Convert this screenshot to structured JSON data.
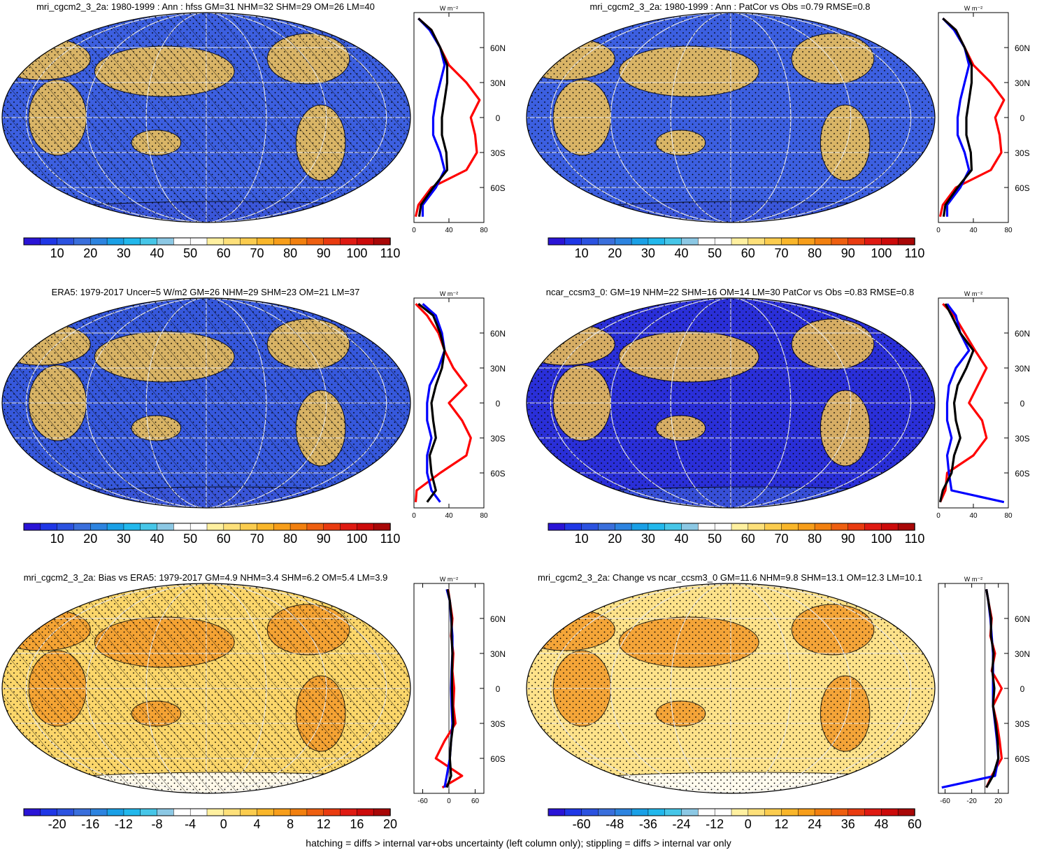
{
  "footnote": "hatching = diffs > internal var+obs uncertainty (left column only); stippling = diffs > internal var only",
  "profile_unit": "W m⁻²",
  "lat_ticks": [
    "60N",
    "30N",
    "0",
    "30S",
    "60S"
  ],
  "colors": {
    "abs_scale": [
      "#2a14d6",
      "#1f37e6",
      "#2b52e0",
      "#3a6fdc",
      "#2d84e0",
      "#1aa0e6",
      "#22b8ec",
      "#46c6e8",
      "#8cc8e4",
      "#ffffff",
      "#ffffff",
      "#fff0a0",
      "#fde07a",
      "#fbcc4e",
      "#f9b62a",
      "#f79e1a",
      "#f2800f",
      "#ee5f10",
      "#e93b10",
      "#df1a12",
      "#cc0a0a",
      "#a80707"
    ],
    "diff_scale": [
      "#2a14d6",
      "#1f37e6",
      "#2b52e0",
      "#3a6fdc",
      "#2d84e0",
      "#1aa0e6",
      "#22b8ec",
      "#46c6e8",
      "#8cc8e4",
      "#ffffff",
      "#ffffff",
      "#fff0a0",
      "#fde07a",
      "#fbcc4e",
      "#f9b62a",
      "#f79e1a",
      "#f2800f",
      "#ee5f10",
      "#e93b10",
      "#df1a12",
      "#cc0a0a",
      "#a80707"
    ],
    "land_line": "#000000",
    "series_land": "#ff0000",
    "series_ocean": "#0000ff",
    "series_global": "#000000"
  },
  "panels": [
    {
      "title": "mri_cgcm2_3_2a: 1980-1999 : Ann : hfss GM=31 NHM=32 SHM=29 OM=26 LM=40",
      "map_fill": "#3c5fe0",
      "hatched": true,
      "scale": "abs",
      "colorbar_labels": [
        "10",
        "20",
        "30",
        "40",
        "50",
        "60",
        "70",
        "80",
        "90",
        "100",
        "110"
      ],
      "profile_ticks": [
        "0",
        "40",
        "80"
      ]
    },
    {
      "title": "mri_cgcm2_3_2a: 1980-1999 : Ann : PatCor vs Obs =0.79 RMSE=0.8",
      "map_fill": "#3c5fe0",
      "hatched": false,
      "scale": "abs",
      "colorbar_labels": [
        "10",
        "20",
        "30",
        "40",
        "50",
        "60",
        "70",
        "80",
        "90",
        "100",
        "110"
      ],
      "profile_ticks": [
        "0",
        "40",
        "80"
      ]
    },
    {
      "title": "ERA5: 1979-2017 Uncer=5 W/m2 GM=26 NHM=29 SHM=23 OM=21 LM=37",
      "map_fill": "#3658dc",
      "hatched": true,
      "scale": "abs",
      "colorbar_labels": [
        "10",
        "20",
        "30",
        "40",
        "50",
        "60",
        "70",
        "80",
        "90",
        "100",
        "110"
      ],
      "profile_ticks": [
        "0",
        "40",
        "80"
      ]
    },
    {
      "title": "ncar_ccsm3_0: GM=19 NHM=22 SHM=16 OM=14 LM=30 PatCor vs Obs =0.83 RMSE=0.8",
      "map_fill": "#2a2fd8",
      "hatched": false,
      "scale": "abs",
      "colorbar_labels": [
        "10",
        "20",
        "30",
        "40",
        "50",
        "60",
        "70",
        "80",
        "90",
        "100",
        "110"
      ],
      "profile_ticks": [
        "0",
        "40",
        "80"
      ]
    },
    {
      "title": "mri_cgcm2_3_2a: Bias vs ERA5: 1979-2017 GM=4.9 NHM=3.4 SHM=6.2 OM=5.4 LM=3.9",
      "map_fill": "#fbd66a",
      "hatched": true,
      "scale": "diff",
      "colorbar_labels": [
        "-20",
        "-16",
        "-12",
        "-8",
        "-4",
        "0",
        "4",
        "8",
        "12",
        "16",
        "20"
      ],
      "profile_ticks": [
        "-60",
        "0",
        "60"
      ]
    },
    {
      "title": "mri_cgcm2_3_2a: Change vs ncar_ccsm3_0 GM=11.6 NHM=9.8 SHM=13.1 OM=12.3 LM=10.1",
      "map_fill": "#fde28a",
      "hatched": false,
      "scale": "diff",
      "colorbar_labels": [
        "-60",
        "-48",
        "-36",
        "-24",
        "-12",
        "0",
        "12",
        "24",
        "36",
        "48",
        "60"
      ],
      "profile_ticks": [
        "-60",
        "-20",
        "20"
      ]
    }
  ],
  "chart_data": [
    {
      "type": "line",
      "title": "mri_cgcm2_3_2a: 1980-1999 : Ann : hfss GM=31 NHM=32 SHM=29 OM=26 LM=40",
      "xlabel": "W m⁻²",
      "xlim": [
        0,
        80
      ],
      "ylim": [
        -90,
        90
      ],
      "y": [
        85,
        75,
        60,
        45,
        30,
        15,
        0,
        -15,
        -30,
        -45,
        -60,
        -75,
        -85
      ],
      "series": [
        {
          "name": "",
          "color": "#ff0000",
          "values": [
            5,
            20,
            30,
            40,
            60,
            75,
            65,
            70,
            72,
            60,
            20,
            5,
            2
          ]
        },
        {
          "name": "",
          "color": "#0000ff",
          "values": [
            5,
            18,
            30,
            35,
            30,
            25,
            22,
            22,
            30,
            35,
            25,
            10,
            10
          ]
        },
        {
          "name": "",
          "color": "#000000",
          "values": [
            5,
            20,
            30,
            38,
            38,
            35,
            32,
            32,
            37,
            38,
            22,
            8,
            6
          ]
        }
      ]
    },
    {
      "type": "line",
      "title": "mri_cgcm2_3_2a: 1980-1999 : Ann : PatCor vs Obs =0.79 RMSE=0.8",
      "xlabel": "W m⁻²",
      "xlim": [
        0,
        80
      ],
      "ylim": [
        -90,
        90
      ],
      "y": [
        85,
        75,
        60,
        45,
        30,
        15,
        0,
        -15,
        -30,
        -45,
        -60,
        -75,
        -85
      ],
      "series": [
        {
          "name": "",
          "color": "#ff0000",
          "values": [
            5,
            20,
            30,
            40,
            60,
            75,
            65,
            70,
            72,
            60,
            20,
            5,
            2
          ]
        },
        {
          "name": "",
          "color": "#0000ff",
          "values": [
            5,
            18,
            30,
            35,
            30,
            25,
            22,
            22,
            30,
            35,
            25,
            10,
            10
          ]
        },
        {
          "name": "",
          "color": "#000000",
          "values": [
            5,
            20,
            30,
            38,
            38,
            35,
            32,
            32,
            37,
            38,
            22,
            8,
            6
          ]
        }
      ]
    },
    {
      "type": "line",
      "title": "ERA5: 1979-2017 Uncer=5 W/m2 GM=26 NHM=29 SHM=23 OM=21 LM=37",
      "xlabel": "W m⁻²",
      "xlim": [
        0,
        80
      ],
      "ylim": [
        -90,
        90
      ],
      "y": [
        85,
        75,
        60,
        45,
        30,
        15,
        0,
        -15,
        -30,
        -45,
        -60,
        -75,
        -85
      ],
      "series": [
        {
          "name": "",
          "color": "#ff0000",
          "values": [
            2,
            15,
            28,
            35,
            45,
            60,
            40,
            55,
            65,
            60,
            30,
            3,
            2
          ]
        },
        {
          "name": "",
          "color": "#0000ff",
          "values": [
            10,
            25,
            32,
            35,
            28,
            18,
            15,
            15,
            20,
            15,
            15,
            20,
            30
          ]
        },
        {
          "name": "",
          "color": "#000000",
          "values": [
            5,
            22,
            30,
            35,
            32,
            25,
            20,
            22,
            25,
            18,
            20,
            25,
            15
          ]
        }
      ]
    },
    {
      "type": "line",
      "title": "ncar_ccsm3_0: GM=19 NHM=22 SHM=16 OM=14 LM=30 PatCor vs Obs =0.83 RMSE=0.8",
      "xlabel": "W m⁻²",
      "xlim": [
        0,
        80
      ],
      "ylim": [
        -90,
        90
      ],
      "y": [
        85,
        75,
        60,
        45,
        30,
        15,
        0,
        -15,
        -30,
        -45,
        -60,
        -75,
        -85
      ],
      "series": [
        {
          "name": "",
          "color": "#ff0000",
          "values": [
            5,
            18,
            30,
            42,
            55,
            45,
            35,
            50,
            55,
            40,
            10,
            8,
            2
          ]
        },
        {
          "name": "",
          "color": "#0000ff",
          "values": [
            10,
            20,
            25,
            35,
            20,
            12,
            10,
            10,
            15,
            10,
            12,
            15,
            75
          ]
        },
        {
          "name": "",
          "color": "#000000",
          "values": [
            8,
            15,
            25,
            40,
            32,
            22,
            18,
            20,
            25,
            18,
            15,
            5,
            2
          ]
        }
      ]
    },
    {
      "type": "line",
      "title": "mri_cgcm2_3_2a: Bias vs ERA5: 1979-2017 GM=4.9 NHM=3.4 SHM=6.2 OM=5.4 LM=3.9",
      "xlabel": "W m⁻²",
      "xlim": [
        -80,
        80
      ],
      "ylim": [
        -90,
        90
      ],
      "y": [
        85,
        75,
        60,
        45,
        30,
        15,
        0,
        -15,
        -30,
        -45,
        -60,
        -75,
        -85
      ],
      "series": [
        {
          "name": "",
          "color": "#ff0000",
          "values": [
            -2,
            2,
            8,
            5,
            10,
            8,
            12,
            10,
            15,
            -10,
            -30,
            30,
            -15
          ]
        },
        {
          "name": "",
          "color": "#0000ff",
          "values": [
            -5,
            2,
            5,
            8,
            8,
            6,
            5,
            6,
            8,
            5,
            2,
            -5,
            -10
          ]
        },
        {
          "name": "",
          "color": "#000000",
          "values": [
            -3,
            2,
            6,
            6,
            8,
            7,
            7,
            8,
            10,
            5,
            2,
            5,
            -5
          ]
        }
      ]
    },
    {
      "type": "line",
      "title": "mri_cgcm2_3_2a: Change vs ncar_ccsm3_0 GM=11.6 NHM=9.8 SHM=13.1 OM=12.3 LM=10.1",
      "xlabel": "W m⁻²",
      "xlim": [
        -70,
        35
      ],
      "ylim": [
        -90,
        90
      ],
      "y": [
        85,
        75,
        60,
        45,
        30,
        15,
        0,
        -15,
        -30,
        -45,
        -60,
        -75,
        -85
      ],
      "series": [
        {
          "name": "",
          "color": "#ff0000",
          "values": [
            2,
            5,
            10,
            8,
            15,
            10,
            25,
            12,
            18,
            22,
            25,
            10,
            2
          ]
        },
        {
          "name": "",
          "color": "#0000ff",
          "values": [
            2,
            5,
            8,
            10,
            12,
            12,
            12,
            12,
            15,
            18,
            20,
            15,
            -65
          ]
        },
        {
          "name": "",
          "color": "#000000",
          "values": [
            2,
            5,
            9,
            9,
            13,
            11,
            14,
            12,
            16,
            19,
            20,
            12,
            2
          ]
        }
      ]
    }
  ]
}
